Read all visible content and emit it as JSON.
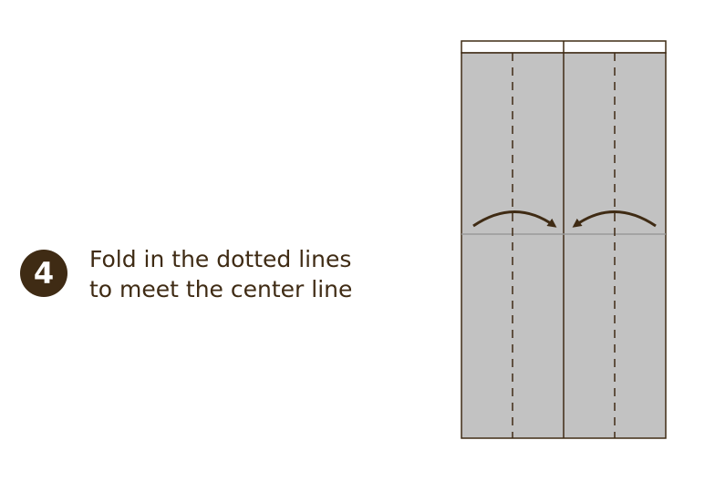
{
  "step": {
    "number": "4",
    "instruction_line1": "Fold in the dotted lines",
    "instruction_line2": "to meet the center line"
  },
  "diagram": {
    "paper_color": "#c2c2c2",
    "white_strip_color": "#ffffff",
    "outline_color": "#3f2b14",
    "crease_color": "#999999",
    "arrow_color": "#3f2b14"
  }
}
